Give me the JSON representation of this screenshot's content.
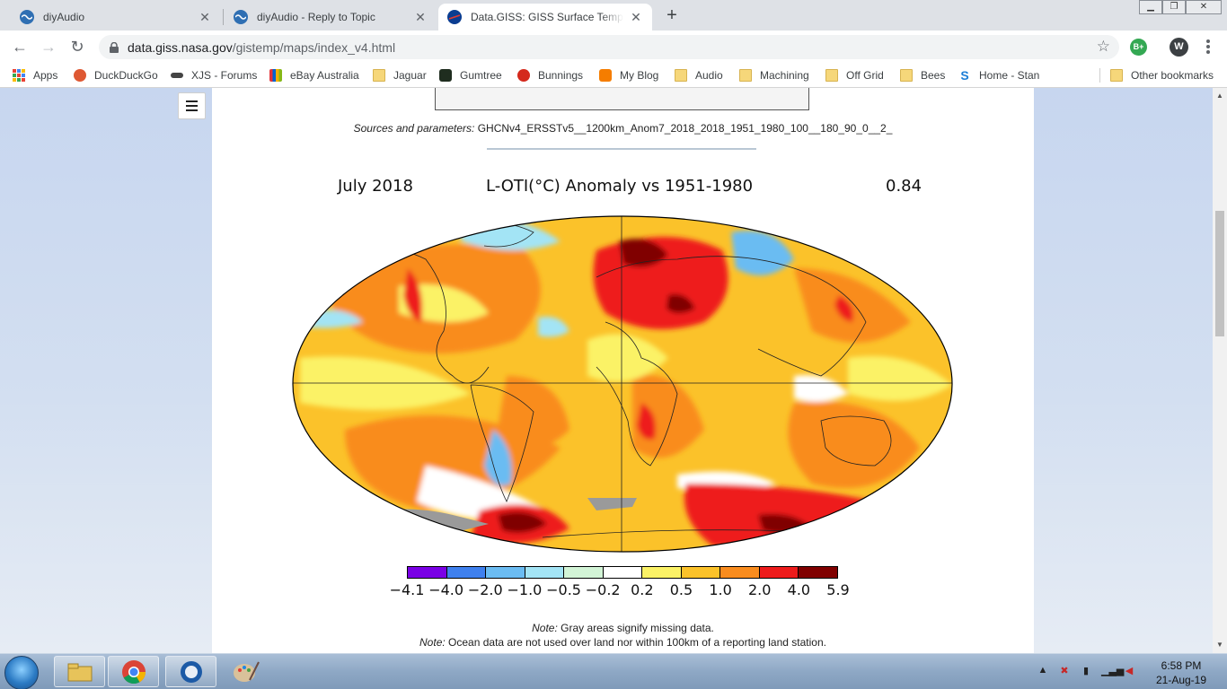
{
  "tabs": [
    {
      "title": "diyAudio",
      "active": false
    },
    {
      "title": "diyAudio - Reply to Topic",
      "active": false
    },
    {
      "title": "Data.GISS: GISS Surface Tempera",
      "active": true
    }
  ],
  "address": {
    "host": "data.giss.nasa.gov",
    "path": "/gistemp/maps/index_v4.html"
  },
  "extensions": {
    "first": "B+",
    "profile": "W"
  },
  "bookmarks": [
    "Apps",
    "DuckDuckGo",
    "XJS - Forums",
    "eBay Australia",
    "Jaguar",
    "Gumtree",
    "Bunnings",
    "My Blog",
    "Audio",
    "Machining",
    "Off Grid",
    "Bees",
    "Home - Stan",
    "Other bookmarks"
  ],
  "page": {
    "sources_label": "Sources and parameters:",
    "sources_value": "GHCNv4_ERSSTv5__1200km_Anom7_2018_2018_1951_1980_100__180_90_0__2_",
    "map_header": {
      "left": "July 2018",
      "center": "L-OTI(°C) Anomaly vs 1951-1980",
      "right": "0.84"
    },
    "note1_label": "Note:",
    "note1_text": "Gray areas signify missing data.",
    "note2_label": "Note:",
    "note2_text": "Ocean data are not used over land nor within 100km of a reporting land station."
  },
  "colorbar": {
    "colors": [
      "#7a00e6",
      "#3f80ee",
      "#6bbcf2",
      "#a3e4f5",
      "#d2f4d6",
      "#ffffff",
      "#fbf266",
      "#fbc22a",
      "#f98c1e",
      "#ee1b1b",
      "#800000"
    ],
    "ticks": [
      "−4.1",
      "−4.0",
      "−2.0",
      "−1.0",
      "−0.5",
      "−0.2",
      "0.2",
      "0.5",
      "1.0",
      "2.0",
      "4.0",
      "5.9"
    ]
  },
  "taskbar": {
    "time": "6:58 PM",
    "date": "21-Aug-19"
  }
}
